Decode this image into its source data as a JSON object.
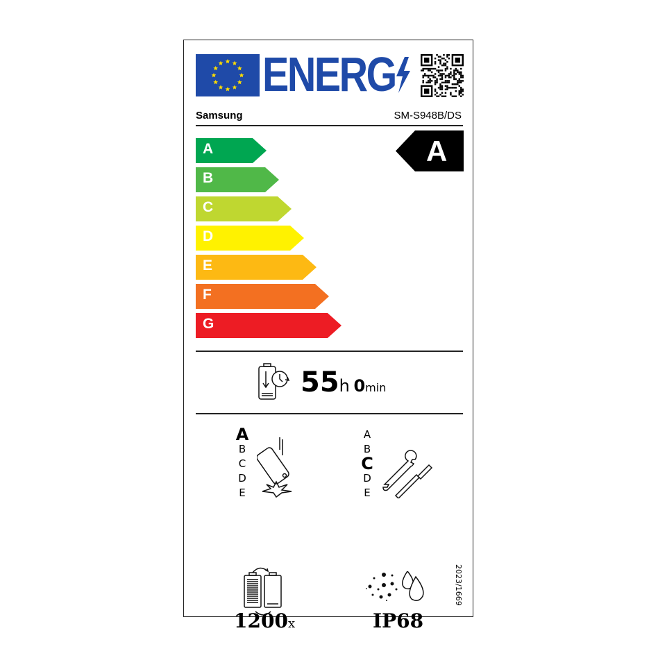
{
  "header": {
    "title": "ENERG",
    "brand": "Samsung",
    "model": "SM-S948B/DS"
  },
  "energy_scale": {
    "classes": [
      {
        "letter": "A",
        "color": "#00a651"
      },
      {
        "letter": "B",
        "color": "#50b848"
      },
      {
        "letter": "C",
        "color": "#bfd730"
      },
      {
        "letter": "D",
        "color": "#fff200"
      },
      {
        "letter": "E",
        "color": "#fdb913"
      },
      {
        "letter": "F",
        "color": "#f37021"
      },
      {
        "letter": "G",
        "color": "#ed1c24"
      }
    ],
    "rating": "A"
  },
  "battery": {
    "hours": "55",
    "h_unit": "h",
    "minutes": "0",
    "min_unit": "min"
  },
  "drop": {
    "classes": [
      "A",
      "B",
      "C",
      "D",
      "E"
    ],
    "rating": "A"
  },
  "repair": {
    "classes": [
      "A",
      "B",
      "C",
      "D",
      "E"
    ],
    "rating": "C"
  },
  "cycles": {
    "value": "1200",
    "unit": "x"
  },
  "ingress": {
    "value": "IP68"
  },
  "regulation": "2023/1669",
  "colors": {
    "eu_blue": "#1f4aa8",
    "eu_yellow": "#ffdd00"
  }
}
